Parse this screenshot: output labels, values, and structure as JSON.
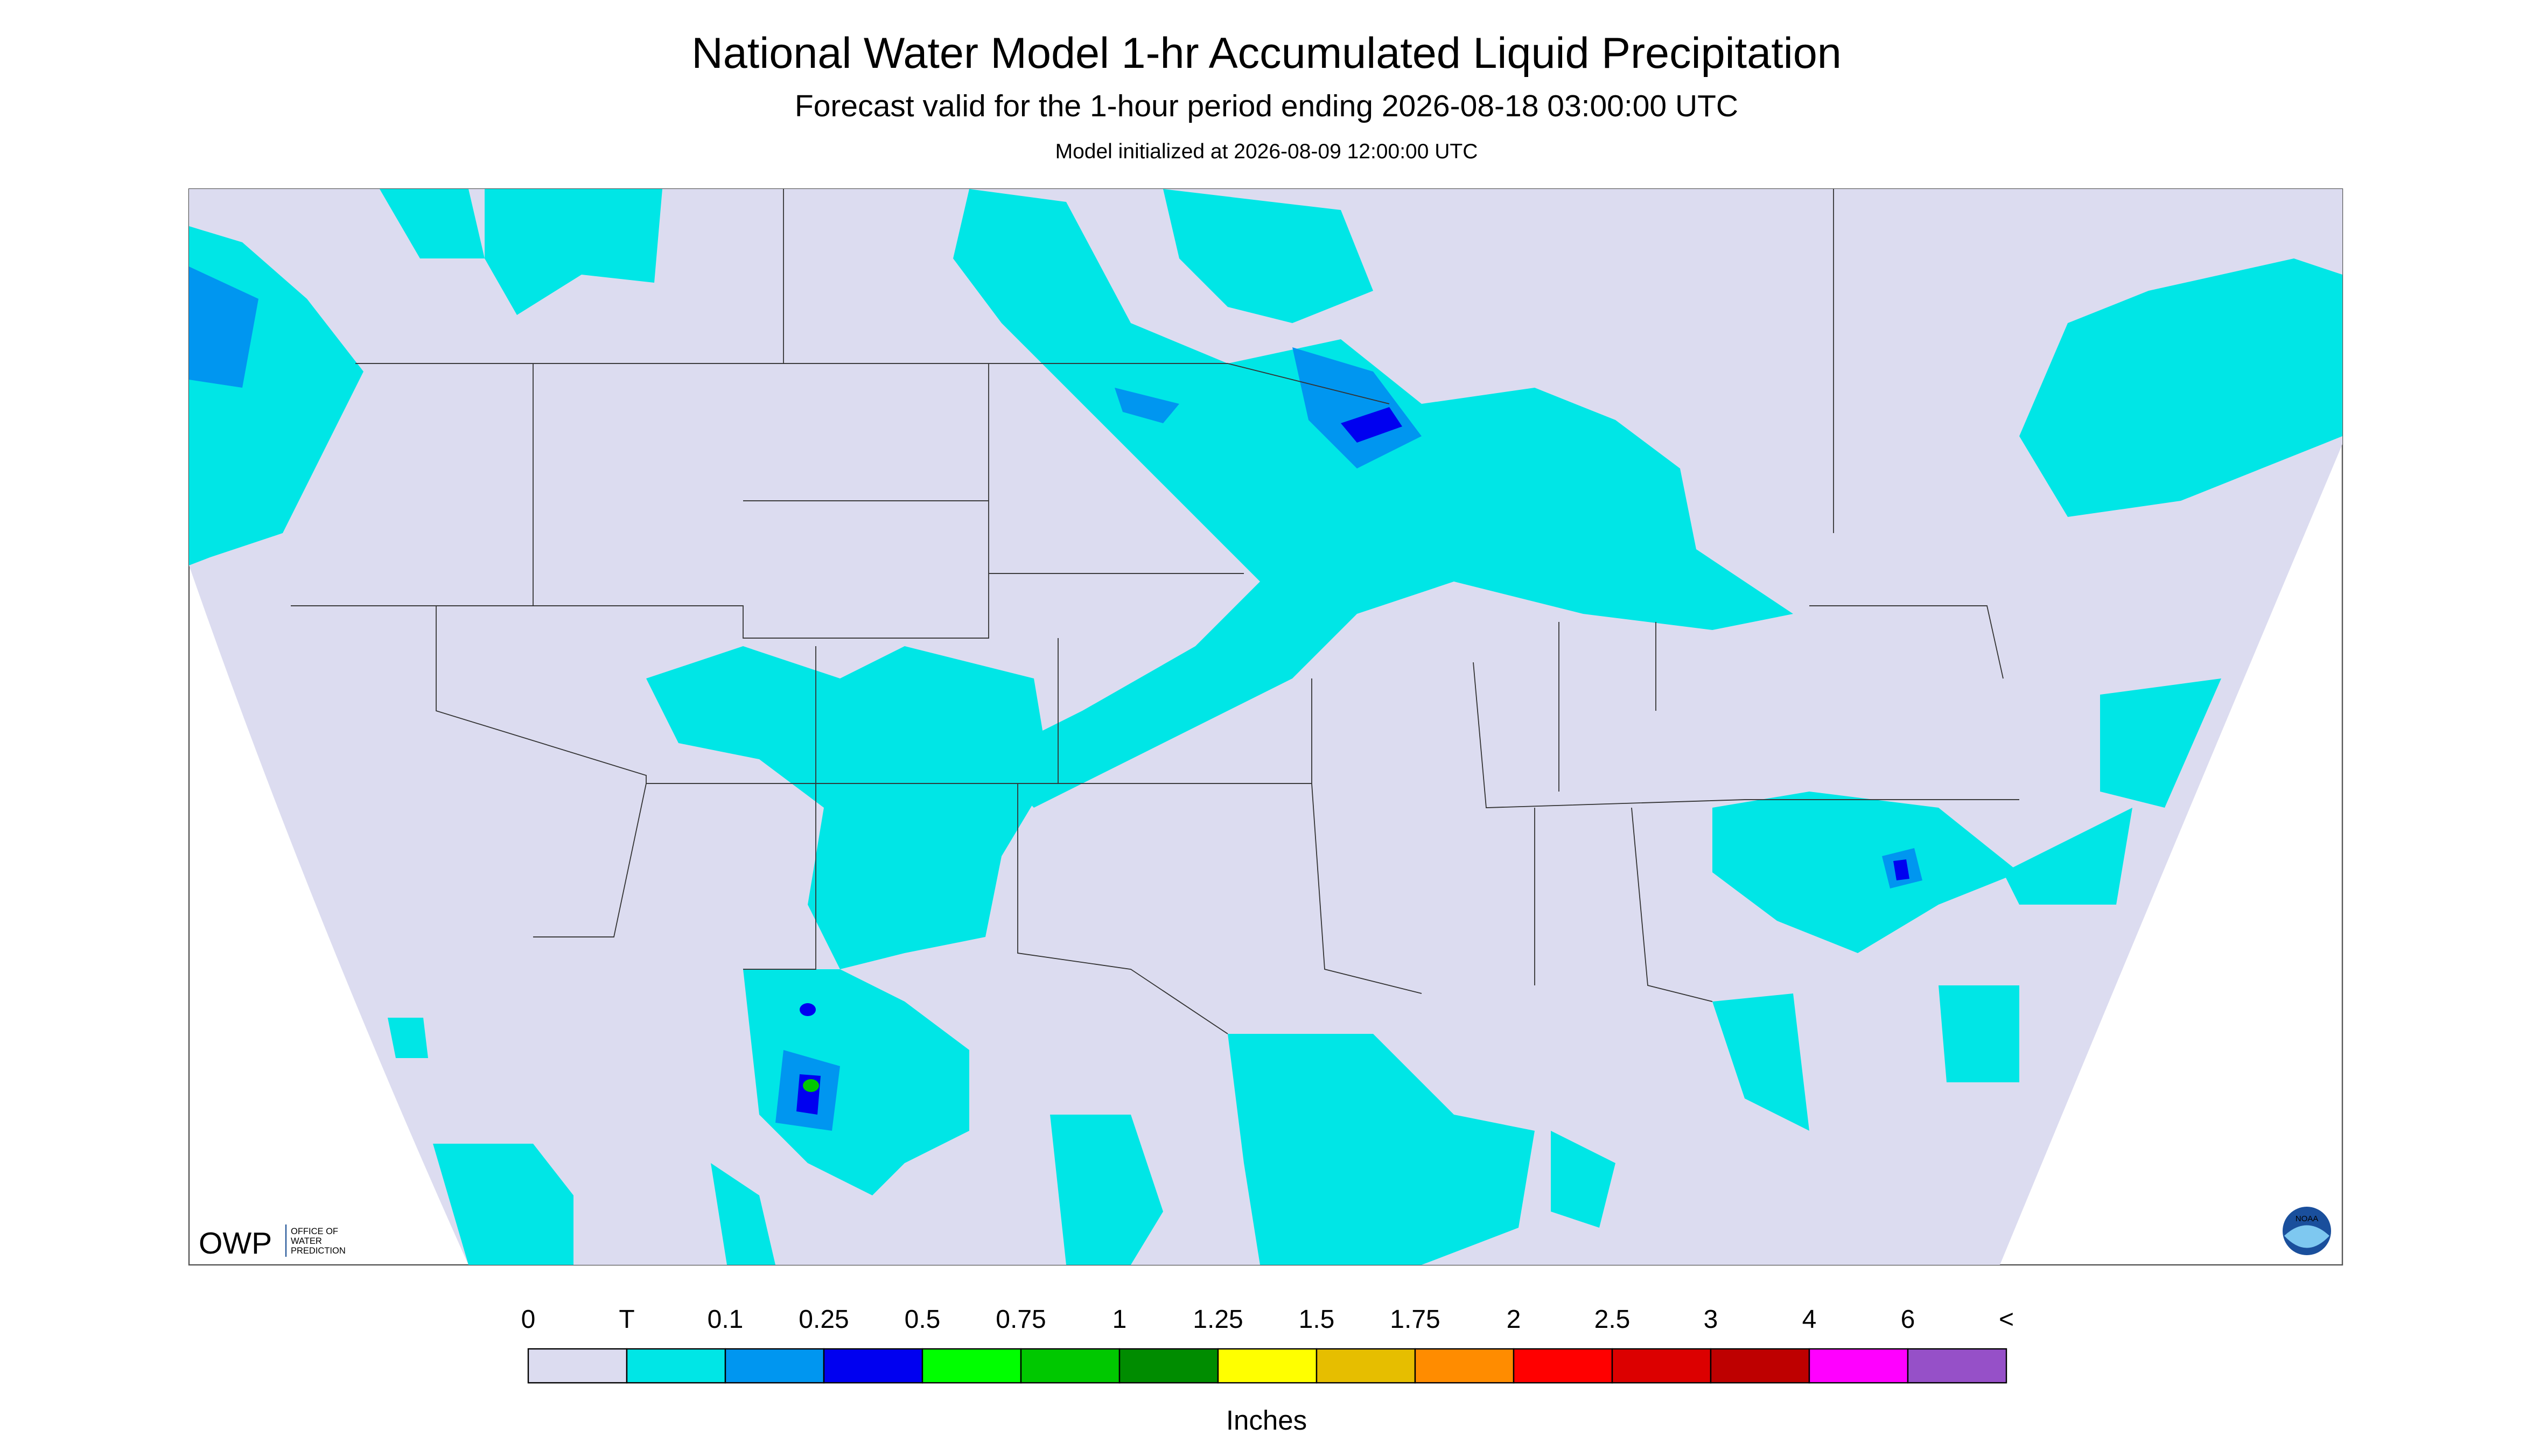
{
  "header": {
    "title": "National Water Model 1-hr Accumulated Liquid Precipitation",
    "subtitle": "Forecast valid for the 1-hour period ending 2026-08-18 03:00:00 UTC",
    "init": "Model initialized at 2026-08-09 12:00:00 UTC"
  },
  "legend": {
    "labels": [
      "0",
      "T",
      "0.1",
      "0.25",
      "0.5",
      "0.75",
      "1",
      "1.25",
      "1.5",
      "1.75",
      "2",
      "2.5",
      "3",
      "4",
      "6",
      "<"
    ],
    "colors": [
      "#dcdcf0",
      "#00e6e6",
      "#0096f0",
      "#0000f0",
      "#00ff00",
      "#00c800",
      "#008c00",
      "#ffff00",
      "#e6be00",
      "#ff8c00",
      "#ff0000",
      "#dc0000",
      "#be0000",
      "#ff00ff",
      "#9650c8"
    ],
    "unit": "Inches"
  },
  "logos": {
    "owp": "OWP",
    "owp_name": [
      "OFFICE OF",
      "WATER",
      "PREDICTION"
    ],
    "noaa": "NOAA"
  }
}
